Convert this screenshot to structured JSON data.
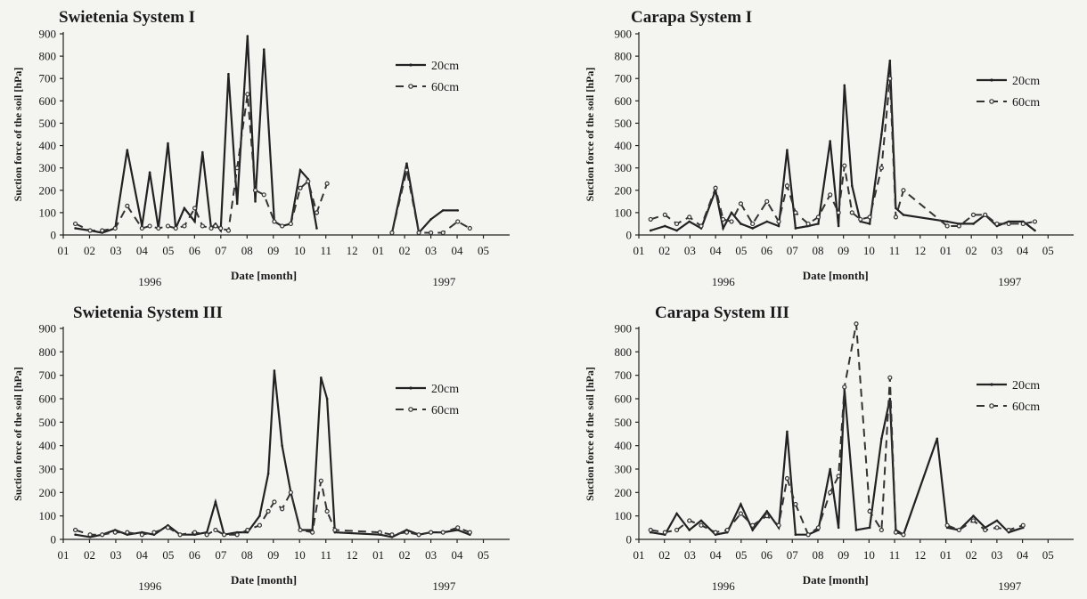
{
  "chart_data": [
    {
      "type": "line",
      "title": "Swietenia System I",
      "xlabel": "Date [month]",
      "ylabel": "Suction force of the soil [hPa]",
      "ylim": [
        0,
        900
      ],
      "yticks": [
        0,
        100,
        200,
        300,
        400,
        500,
        600,
        700,
        800,
        900
      ],
      "xlim": [
        "1996-01-01",
        "1997-05-31"
      ],
      "x_ticks": [
        "01",
        "02",
        "03",
        "04",
        "05",
        "06",
        "07",
        "08",
        "09",
        "10",
        "11",
        "12",
        "01",
        "02",
        "03",
        "04",
        "05"
      ],
      "year_labels": [
        "1996",
        "1997"
      ],
      "legend_position": "upper-right",
      "grid": false,
      "series": [
        {
          "name": "20cm",
          "x": [
            "1996-01-15",
            "1996-02-01",
            "1996-02-15",
            "1996-03-01",
            "1996-03-15",
            "1996-04-01",
            "1996-04-10",
            "1996-04-20",
            "1996-05-01",
            "1996-05-10",
            "1996-05-20",
            "1996-06-01",
            "1996-06-10",
            "1996-06-20",
            "1996-06-25",
            "1996-07-01",
            "1996-07-10",
            "1996-07-20",
            "1996-08-01",
            "1996-08-10",
            "1996-08-20",
            "1996-09-01",
            "1996-09-10",
            "1996-09-20",
            "1996-10-01",
            "1996-10-10",
            "1996-10-20",
            "1996-11-01",
            "1996-11-10",
            "1996-11-20",
            "1996-12-01",
            "1997-01-15",
            "1997-02-01",
            "1997-02-15",
            "1997-03-01",
            "1997-03-15",
            "1997-04-01",
            "1997-04-15"
          ],
          "values": [
            30,
            20,
            10,
            30,
            380,
            40,
            280,
            30,
            410,
            30,
            120,
            60,
            370,
            30,
            50,
            20,
            720,
            140,
            890,
            150,
            830,
            60,
            40,
            50,
            290,
            250,
            30,
            null,
            null,
            null,
            null,
            10,
            320,
            10,
            70,
            110,
            110,
            null
          ]
        },
        {
          "name": "60cm",
          "x": [
            "1996-01-15",
            "1996-02-01",
            "1996-02-15",
            "1996-03-01",
            "1996-03-15",
            "1996-04-01",
            "1996-04-10",
            "1996-04-20",
            "1996-05-01",
            "1996-05-10",
            "1996-05-20",
            "1996-06-01",
            "1996-06-10",
            "1996-06-20",
            "1996-06-25",
            "1996-07-01",
            "1996-07-10",
            "1996-07-20",
            "1996-08-01",
            "1996-08-10",
            "1996-08-20",
            "1996-09-01",
            "1996-09-10",
            "1996-09-20",
            "1996-10-01",
            "1996-10-10",
            "1996-10-20",
            "1996-11-01",
            "1996-11-10",
            "1996-11-20",
            "1996-12-01",
            "1997-01-15",
            "1997-02-01",
            "1997-02-15",
            "1997-03-01",
            "1997-03-15",
            "1997-04-01",
            "1997-04-15"
          ],
          "values": [
            50,
            20,
            20,
            30,
            130,
            30,
            40,
            30,
            40,
            30,
            40,
            120,
            40,
            30,
            40,
            30,
            20,
            300,
            630,
            200,
            180,
            60,
            40,
            50,
            210,
            240,
            100,
            230,
            null,
            null,
            null,
            10,
            290,
            10,
            10,
            10,
            60,
            30
          ]
        }
      ]
    },
    {
      "type": "line",
      "title": "Carapa System I",
      "xlabel": "Date [month]",
      "ylabel": "Suction force of the soil [hPa]",
      "ylim": [
        0,
        900
      ],
      "yticks": [
        0,
        100,
        200,
        300,
        400,
        500,
        600,
        700,
        800,
        900
      ],
      "xlim": [
        "1996-01-01",
        "1997-05-31"
      ],
      "x_ticks": [
        "01",
        "02",
        "03",
        "04",
        "05",
        "06",
        "07",
        "08",
        "09",
        "10",
        "11",
        "12",
        "01",
        "02",
        "03",
        "04",
        "05"
      ],
      "year_labels": [
        "1996",
        "1997"
      ],
      "legend_position": "upper-right",
      "grid": false,
      "series": [
        {
          "name": "20cm",
          "x": [
            "1996-01-15",
            "1996-02-01",
            "1996-02-15",
            "1996-03-01",
            "1996-03-15",
            "1996-04-01",
            "1996-04-10",
            "1996-04-20",
            "1996-05-01",
            "1996-05-15",
            "1996-06-01",
            "1996-06-15",
            "1996-06-25",
            "1996-07-05",
            "1996-07-20",
            "1996-08-01",
            "1996-08-15",
            "1996-08-25",
            "1996-09-01",
            "1996-09-10",
            "1996-09-20",
            "1996-10-01",
            "1996-10-15",
            "1996-10-25",
            "1996-11-01",
            "1996-11-10",
            "1997-01-01",
            "1997-01-15",
            "1997-02-01",
            "1997-02-15",
            "1997-03-01",
            "1997-03-15",
            "1997-04-01",
            "1997-04-15"
          ],
          "values": [
            20,
            40,
            20,
            60,
            30,
            200,
            30,
            100,
            50,
            30,
            60,
            40,
            380,
            30,
            40,
            50,
            420,
            40,
            670,
            220,
            60,
            50,
            450,
            780,
            120,
            90,
            60,
            50,
            50,
            90,
            40,
            60,
            60,
            20
          ]
        },
        {
          "name": "60cm",
          "x": [
            "1996-01-15",
            "1996-02-01",
            "1996-02-15",
            "1996-03-01",
            "1996-03-15",
            "1996-04-01",
            "1996-04-10",
            "1996-04-20",
            "1996-05-01",
            "1996-05-15",
            "1996-06-01",
            "1996-06-15",
            "1996-06-25",
            "1996-07-05",
            "1996-07-20",
            "1996-08-01",
            "1996-08-15",
            "1996-08-25",
            "1996-09-01",
            "1996-09-10",
            "1996-09-20",
            "1996-10-01",
            "1996-10-15",
            "1996-10-25",
            "1996-11-01",
            "1996-11-10",
            "1997-01-01",
            "1997-01-15",
            "1997-02-01",
            "1997-02-15",
            "1997-03-01",
            "1997-03-15",
            "1997-04-01",
            "1997-04-15"
          ],
          "values": [
            70,
            90,
            50,
            80,
            40,
            210,
            70,
            60,
            140,
            50,
            150,
            60,
            220,
            100,
            50,
            80,
            180,
            100,
            310,
            100,
            70,
            80,
            300,
            700,
            80,
            200,
            40,
            40,
            90,
            90,
            50,
            50,
            50,
            60
          ]
        }
      ]
    },
    {
      "type": "line",
      "title": "Swietenia System III",
      "xlabel": "Date [month]",
      "ylabel": "Suction force of the soil [hPa]",
      "ylim": [
        0,
        900
      ],
      "yticks": [
        0,
        100,
        200,
        300,
        400,
        500,
        600,
        700,
        800,
        900
      ],
      "xlim": [
        "1996-01-01",
        "1997-05-31"
      ],
      "x_ticks": [
        "01",
        "02",
        "03",
        "04",
        "05",
        "06",
        "07",
        "08",
        "09",
        "10",
        "11",
        "12",
        "01",
        "02",
        "03",
        "04",
        "05"
      ],
      "year_labels": [
        "1996",
        "1997"
      ],
      "legend_position": "upper-right",
      "grid": false,
      "series": [
        {
          "name": "20cm",
          "x": [
            "1996-01-15",
            "1996-02-01",
            "1996-02-15",
            "1996-03-01",
            "1996-03-15",
            "1996-04-01",
            "1996-04-15",
            "1996-05-01",
            "1996-05-15",
            "1996-06-01",
            "1996-06-15",
            "1996-06-25",
            "1996-07-05",
            "1996-07-20",
            "1996-08-01",
            "1996-08-15",
            "1996-08-25",
            "1996-09-01",
            "1996-09-10",
            "1996-09-20",
            "1996-10-01",
            "1996-10-15",
            "1996-10-25",
            "1996-11-01",
            "1996-11-10",
            "1997-01-01",
            "1997-01-15",
            "1997-02-01",
            "1997-02-15",
            "1997-03-01",
            "1997-03-15",
            "1997-04-01",
            "1997-04-15"
          ],
          "values": [
            20,
            10,
            20,
            40,
            20,
            30,
            20,
            60,
            20,
            20,
            30,
            160,
            20,
            30,
            30,
            100,
            280,
            720,
            400,
            200,
            40,
            40,
            690,
            600,
            30,
            20,
            10,
            40,
            20,
            30,
            30,
            40,
            20
          ]
        },
        {
          "name": "60cm",
          "x": [
            "1996-01-15",
            "1996-02-01",
            "1996-02-15",
            "1996-03-01",
            "1996-03-15",
            "1996-04-01",
            "1996-04-15",
            "1996-05-01",
            "1996-05-15",
            "1996-06-01",
            "1996-06-15",
            "1996-06-25",
            "1996-07-05",
            "1996-07-20",
            "1996-08-01",
            "1996-08-15",
            "1996-08-25",
            "1996-09-01",
            "1996-09-10",
            "1996-09-20",
            "1996-10-01",
            "1996-10-15",
            "1996-10-25",
            "1996-11-01",
            "1996-11-10",
            "1997-01-01",
            "1997-01-15",
            "1997-02-01",
            "1997-02-15",
            "1997-03-01",
            "1997-03-15",
            "1997-04-01",
            "1997-04-15"
          ],
          "values": [
            40,
            20,
            20,
            30,
            30,
            20,
            30,
            50,
            20,
            30,
            20,
            40,
            20,
            20,
            40,
            60,
            120,
            160,
            130,
            200,
            40,
            30,
            250,
            120,
            40,
            30,
            20,
            30,
            20,
            30,
            30,
            50,
            30
          ]
        }
      ]
    },
    {
      "type": "line",
      "title": "Carapa System III",
      "xlabel": "Date [month]",
      "ylabel": "Suction force of the soil [hPa]",
      "ylim": [
        0,
        900
      ],
      "yticks": [
        0,
        100,
        200,
        300,
        400,
        500,
        600,
        700,
        800,
        900
      ],
      "xlim": [
        "1996-01-01",
        "1997-05-31"
      ],
      "x_ticks": [
        "01",
        "02",
        "03",
        "04",
        "05",
        "06",
        "07",
        "08",
        "09",
        "10",
        "11",
        "12",
        "01",
        "02",
        "03",
        "04",
        "05"
      ],
      "year_labels": [
        "1996",
        "1997"
      ],
      "legend_position": "upper-right",
      "grid": false,
      "series": [
        {
          "name": "20cm",
          "x": [
            "1996-01-15",
            "1996-02-01",
            "1996-02-15",
            "1996-03-01",
            "1996-03-15",
            "1996-04-01",
            "1996-04-15",
            "1996-05-01",
            "1996-05-15",
            "1996-06-01",
            "1996-06-15",
            "1996-06-25",
            "1996-07-05",
            "1996-07-20",
            "1996-08-01",
            "1996-08-15",
            "1996-08-25",
            "1996-09-01",
            "1996-09-15",
            "1996-10-01",
            "1996-10-15",
            "1996-10-25",
            "1996-11-01",
            "1996-11-10",
            "1996-12-20",
            "1997-01-01",
            "1997-01-15",
            "1997-02-01",
            "1997-02-15",
            "1997-03-01",
            "1997-03-15",
            "1997-04-01"
          ],
          "values": [
            30,
            20,
            110,
            40,
            80,
            20,
            30,
            150,
            40,
            120,
            50,
            460,
            20,
            20,
            40,
            300,
            50,
            640,
            40,
            50,
            430,
            600,
            40,
            20,
            430,
            50,
            40,
            100,
            50,
            80,
            30,
            50
          ]
        },
        {
          "name": "60cm",
          "x": [
            "1996-01-15",
            "1996-02-01",
            "1996-02-15",
            "1996-03-01",
            "1996-03-15",
            "1996-04-01",
            "1996-04-15",
            "1996-05-01",
            "1996-05-15",
            "1996-06-01",
            "1996-06-15",
            "1996-06-25",
            "1996-07-05",
            "1996-07-20",
            "1996-08-01",
            "1996-08-15",
            "1996-08-25",
            "1996-09-01",
            "1996-09-15",
            "1996-10-01",
            "1996-10-15",
            "1996-10-25",
            "1996-11-01",
            "1996-11-10",
            "1996-12-20",
            "1997-01-01",
            "1997-01-15",
            "1997-02-01",
            "1997-02-15",
            "1997-03-01",
            "1997-03-15",
            "1997-04-01"
          ],
          "values": [
            40,
            30,
            40,
            80,
            60,
            30,
            40,
            110,
            60,
            100,
            60,
            260,
            150,
            20,
            50,
            200,
            270,
            650,
            920,
            120,
            40,
            690,
            30,
            20,
            null,
            60,
            40,
            80,
            40,
            50,
            40,
            60
          ]
        }
      ]
    }
  ]
}
